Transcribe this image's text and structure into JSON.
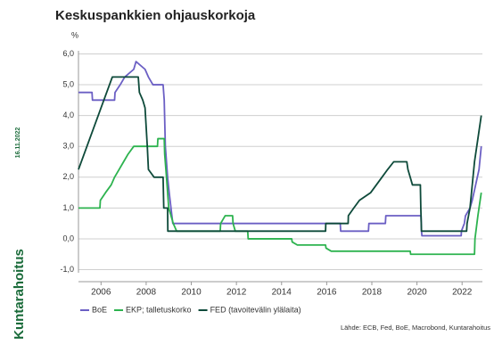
{
  "chart_data": {
    "type": "line",
    "title": "Keskuspankkien ohjauskorkoja",
    "y_label": "%",
    "date": "16.11.2022",
    "logo": "Kuntarahoitus",
    "source": "Lähde: ECB, Fed, BoE, Macrobond, Kuntarahoitus",
    "xlim": [
      2005,
      2022.9
    ],
    "xticks": [
      2006,
      2008,
      2010,
      2012,
      2014,
      2016,
      2018,
      2020,
      2022
    ],
    "ylim": [
      -1.1,
      6.1
    ],
    "yticks": [
      {
        "value": -1,
        "label": "-1,0"
      },
      {
        "value": 0,
        "label": "0,0"
      },
      {
        "value": 1,
        "label": "1,0"
      },
      {
        "value": 2,
        "label": "2,0"
      },
      {
        "value": 3,
        "label": "3,0"
      },
      {
        "value": 4,
        "label": "4,0"
      },
      {
        "value": 5,
        "label": "5,0"
      },
      {
        "value": 6,
        "label": "6,0"
      }
    ],
    "grid": true,
    "series": [
      {
        "name": "BoE",
        "color": "#6b5fc4",
        "x": [
          2005,
          2005.6,
          2005.62,
          2006.6,
          2006.62,
          2006.85,
          2007.05,
          2007.45,
          2007.55,
          2007.95,
          2008.1,
          2008.3,
          2008.75,
          2008.8,
          2008.85,
          2008.95,
          2009.02,
          2009.1,
          2009.18,
          2016.6,
          2016.62,
          2017.85,
          2017.87,
          2018.6,
          2018.62,
          2020.18,
          2020.2,
          2020.22,
          2021.96,
          2021.97,
          2022.1,
          2022.15,
          2022.35,
          2022.45,
          2022.6,
          2022.75,
          2022.85
        ],
        "values": [
          4.75,
          4.75,
          4.5,
          4.5,
          4.75,
          5.0,
          5.25,
          5.5,
          5.75,
          5.5,
          5.25,
          5.0,
          5.0,
          4.5,
          3.0,
          2.0,
          1.5,
          1.0,
          0.5,
          0.5,
          0.25,
          0.25,
          0.5,
          0.5,
          0.75,
          0.75,
          0.25,
          0.1,
          0.1,
          0.25,
          0.5,
          0.75,
          1.0,
          1.25,
          1.75,
          2.25,
          3.0
        ]
      },
      {
        "name": "EKP; talletuskorko",
        "color": "#2db34f",
        "x": [
          2005,
          2005.95,
          2005.97,
          2006.2,
          2006.45,
          2006.6,
          2006.8,
          2007.0,
          2007.2,
          2007.45,
          2008.5,
          2008.52,
          2008.8,
          2008.82,
          2008.9,
          2009.0,
          2009.2,
          2009.35,
          2011.28,
          2011.3,
          2011.5,
          2011.83,
          2011.85,
          2011.95,
          2012.5,
          2012.52,
          2014.45,
          2014.47,
          2014.7,
          2015.95,
          2015.97,
          2016.2,
          2019.7,
          2019.72,
          2022.55,
          2022.57,
          2022.7,
          2022.85
        ],
        "values": [
          1.0,
          1.0,
          1.25,
          1.5,
          1.75,
          2.0,
          2.25,
          2.5,
          2.75,
          3.0,
          3.0,
          3.25,
          3.25,
          2.75,
          2.0,
          1.0,
          0.5,
          0.25,
          0.25,
          0.5,
          0.75,
          0.75,
          0.5,
          0.25,
          0.25,
          0.0,
          0.0,
          -0.1,
          -0.2,
          -0.2,
          -0.3,
          -0.4,
          -0.4,
          -0.5,
          -0.5,
          0.0,
          0.75,
          1.5
        ]
      },
      {
        "name": "FED (tavoitevälin ylälaita)",
        "color": "#0e4a3a",
        "x": [
          2005,
          2005.5,
          2006,
          2006.5,
          2007.65,
          2007.7,
          2007.85,
          2007.95,
          2008.05,
          2008.1,
          2008.35,
          2008.75,
          2008.78,
          2008.95,
          2008.96,
          2015.95,
          2015.96,
          2016.95,
          2016.96,
          2017.2,
          2017.45,
          2017.95,
          2018.2,
          2018.45,
          2018.7,
          2018.97,
          2019.55,
          2019.6,
          2019.7,
          2019.8,
          2020.15,
          2020.17,
          2020.2,
          2022.2,
          2022.22,
          2022.35,
          2022.45,
          2022.55,
          2022.7,
          2022.85
        ],
        "values": [
          2.25,
          3.25,
          4.25,
          5.25,
          5.25,
          4.75,
          4.5,
          4.25,
          3.0,
          2.25,
          2.0,
          2.0,
          1.0,
          1.0,
          0.25,
          0.25,
          0.5,
          0.5,
          0.75,
          1.0,
          1.25,
          1.5,
          1.75,
          2.0,
          2.25,
          2.5,
          2.5,
          2.25,
          2.0,
          1.75,
          1.75,
          1.0,
          0.25,
          0.25,
          0.5,
          1.0,
          1.75,
          2.5,
          3.25,
          4.0
        ]
      }
    ]
  }
}
